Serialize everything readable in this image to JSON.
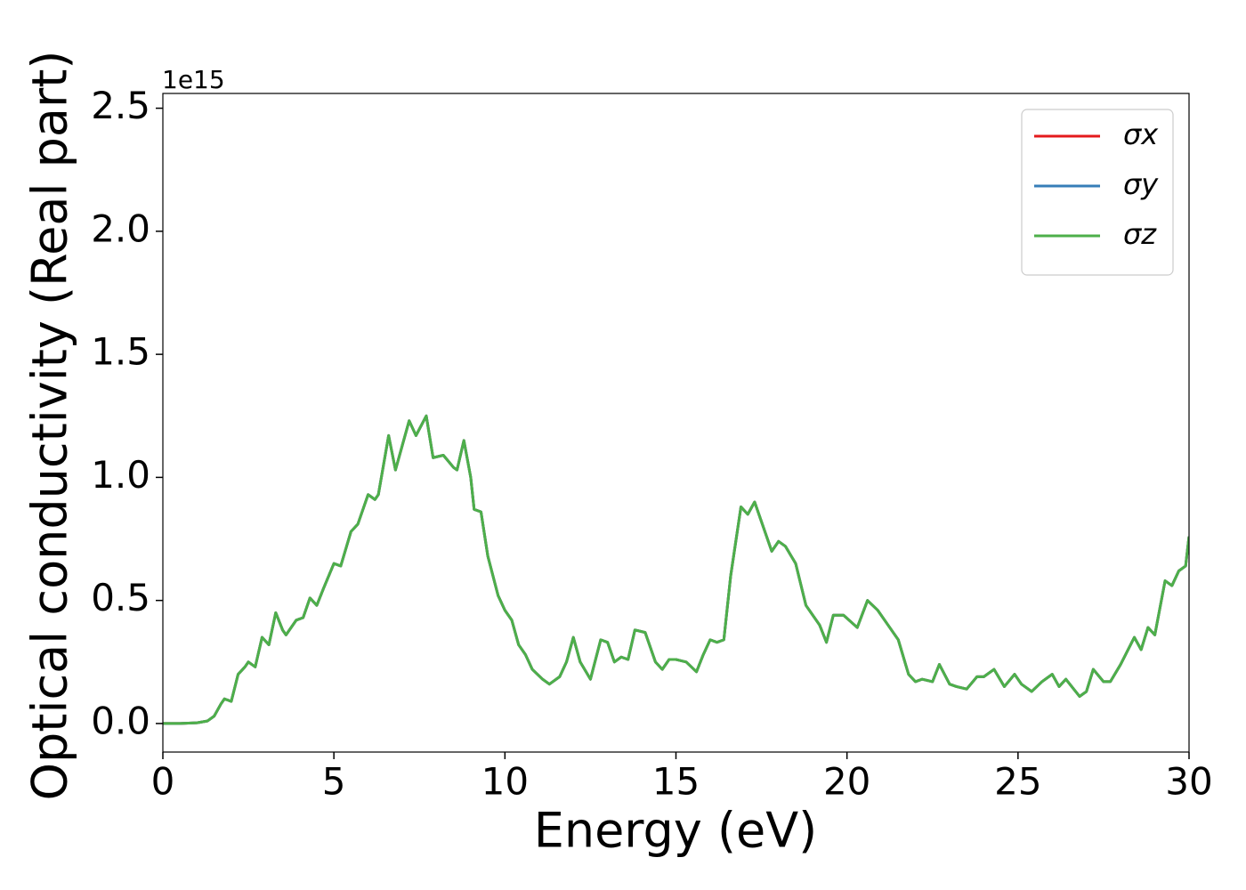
{
  "chart_data": {
    "type": "line",
    "xlabel": "Energy (eV)",
    "ylabel": "Optical conductivity (Real part)",
    "y_offset_text": "1e15",
    "x": [
      0,
      0.5,
      1,
      1.3,
      1.5,
      1.7,
      1.8,
      2.0,
      2.2,
      2.4,
      2.5,
      2.7,
      2.9,
      3.1,
      3.3,
      3.5,
      3.6,
      3.9,
      4.1,
      4.3,
      4.5,
      4.7,
      5.0,
      5.2,
      5.5,
      5.7,
      6.0,
      6.2,
      6.3,
      6.6,
      6.8,
      7.0,
      7.2,
      7.4,
      7.7,
      7.9,
      8.2,
      8.5,
      8.6,
      8.8,
      9.0,
      9.1,
      9.3,
      9.5,
      9.8,
      10.0,
      10.2,
      10.4,
      10.6,
      10.8,
      11.1,
      11.3,
      11.6,
      11.8,
      12.0,
      12.2,
      12.5,
      12.8,
      13.0,
      13.2,
      13.4,
      13.6,
      13.8,
      14.1,
      14.4,
      14.6,
      14.8,
      15.0,
      15.3,
      15.6,
      15.8,
      16.0,
      16.2,
      16.4,
      16.6,
      16.9,
      17.1,
      17.3,
      17.6,
      17.8,
      18.0,
      18.2,
      18.5,
      18.8,
      19.0,
      19.2,
      19.4,
      19.6,
      19.9,
      20.3,
      20.6,
      20.9,
      21.2,
      21.5,
      21.8,
      22.0,
      22.2,
      22.5,
      22.7,
      23.0,
      23.2,
      23.5,
      23.8,
      24.0,
      24.3,
      24.6,
      24.9,
      25.1,
      25.4,
      25.7,
      26.0,
      26.2,
      26.4,
      26.8,
      27.0,
      27.2,
      27.5,
      27.7,
      28.0,
      28.4,
      28.6,
      28.8,
      29.0,
      29.3,
      29.5,
      29.7,
      29.9,
      30
    ],
    "series": [
      {
        "name": "σx",
        "color": "#e41a1c",
        "values": [
          0,
          0,
          0.003,
          0.01,
          0.03,
          0.08,
          0.1,
          0.09,
          0.2,
          0.23,
          0.25,
          0.23,
          0.35,
          0.32,
          0.45,
          0.38,
          0.36,
          0.42,
          0.43,
          0.51,
          0.48,
          0.55,
          0.65,
          0.64,
          0.78,
          0.81,
          0.93,
          0.91,
          0.93,
          1.17,
          1.03,
          1.13,
          1.23,
          1.17,
          1.25,
          1.08,
          1.09,
          1.04,
          1.03,
          1.15,
          1.0,
          0.87,
          0.86,
          0.68,
          0.52,
          0.46,
          0.42,
          0.32,
          0.28,
          0.22,
          0.18,
          0.16,
          0.19,
          0.25,
          0.35,
          0.25,
          0.18,
          0.34,
          0.33,
          0.25,
          0.27,
          0.26,
          0.38,
          0.37,
          0.25,
          0.22,
          0.26,
          0.26,
          0.25,
          0.21,
          0.28,
          0.34,
          0.33,
          0.34,
          0.6,
          0.88,
          0.85,
          0.9,
          0.78,
          0.7,
          0.74,
          0.72,
          0.65,
          0.48,
          0.44,
          0.4,
          0.33,
          0.44,
          0.44,
          0.39,
          0.5,
          0.46,
          0.4,
          0.34,
          0.2,
          0.17,
          0.18,
          0.17,
          0.24,
          0.16,
          0.15,
          0.14,
          0.19,
          0.19,
          0.22,
          0.15,
          0.2,
          0.16,
          0.13,
          0.17,
          0.2,
          0.15,
          0.18,
          0.11,
          0.13,
          0.22,
          0.17,
          0.17,
          0.24,
          0.35,
          0.3,
          0.39,
          0.36,
          0.58,
          0.56,
          0.62,
          0.64,
          0.76
        ]
      },
      {
        "name": "σy",
        "color": "#377eb8",
        "values": [
          0,
          0,
          0.003,
          0.01,
          0.03,
          0.08,
          0.1,
          0.09,
          0.2,
          0.23,
          0.25,
          0.23,
          0.35,
          0.32,
          0.45,
          0.38,
          0.36,
          0.42,
          0.43,
          0.51,
          0.48,
          0.55,
          0.65,
          0.64,
          0.78,
          0.81,
          0.93,
          0.91,
          0.93,
          1.17,
          1.03,
          1.13,
          1.23,
          1.17,
          1.25,
          1.08,
          1.09,
          1.04,
          1.03,
          1.15,
          1.0,
          0.87,
          0.86,
          0.68,
          0.52,
          0.46,
          0.42,
          0.32,
          0.28,
          0.22,
          0.18,
          0.16,
          0.19,
          0.25,
          0.35,
          0.25,
          0.18,
          0.34,
          0.33,
          0.25,
          0.27,
          0.26,
          0.38,
          0.37,
          0.25,
          0.22,
          0.26,
          0.26,
          0.25,
          0.21,
          0.28,
          0.34,
          0.33,
          0.34,
          0.6,
          0.88,
          0.85,
          0.9,
          0.78,
          0.7,
          0.74,
          0.72,
          0.65,
          0.48,
          0.44,
          0.4,
          0.33,
          0.44,
          0.44,
          0.39,
          0.5,
          0.46,
          0.4,
          0.34,
          0.2,
          0.17,
          0.18,
          0.17,
          0.24,
          0.16,
          0.15,
          0.14,
          0.19,
          0.19,
          0.22,
          0.15,
          0.2,
          0.16,
          0.13,
          0.17,
          0.2,
          0.15,
          0.18,
          0.11,
          0.13,
          0.22,
          0.17,
          0.17,
          0.24,
          0.35,
          0.3,
          0.39,
          0.36,
          0.58,
          0.56,
          0.62,
          0.64,
          0.76
        ]
      },
      {
        "name": "σz",
        "color": "#4daf4a",
        "values": [
          0,
          0,
          0.003,
          0.01,
          0.03,
          0.08,
          0.1,
          0.09,
          0.2,
          0.23,
          0.25,
          0.23,
          0.35,
          0.32,
          0.45,
          0.38,
          0.36,
          0.42,
          0.43,
          0.51,
          0.48,
          0.55,
          0.65,
          0.64,
          0.78,
          0.81,
          0.93,
          0.91,
          0.93,
          1.17,
          1.03,
          1.13,
          1.23,
          1.17,
          1.25,
          1.08,
          1.09,
          1.04,
          1.03,
          1.15,
          1.0,
          0.87,
          0.86,
          0.68,
          0.52,
          0.46,
          0.42,
          0.32,
          0.28,
          0.22,
          0.18,
          0.16,
          0.19,
          0.25,
          0.35,
          0.25,
          0.18,
          0.34,
          0.33,
          0.25,
          0.27,
          0.26,
          0.38,
          0.37,
          0.25,
          0.22,
          0.26,
          0.26,
          0.25,
          0.21,
          0.28,
          0.34,
          0.33,
          0.34,
          0.6,
          0.88,
          0.85,
          0.9,
          0.78,
          0.7,
          0.74,
          0.72,
          0.65,
          0.48,
          0.44,
          0.4,
          0.33,
          0.44,
          0.44,
          0.39,
          0.5,
          0.46,
          0.4,
          0.34,
          0.2,
          0.17,
          0.18,
          0.17,
          0.24,
          0.16,
          0.15,
          0.14,
          0.19,
          0.19,
          0.22,
          0.15,
          0.2,
          0.16,
          0.13,
          0.17,
          0.2,
          0.15,
          0.18,
          0.11,
          0.13,
          0.22,
          0.17,
          0.17,
          0.24,
          0.35,
          0.3,
          0.39,
          0.36,
          0.58,
          0.56,
          0.62,
          0.64,
          0.76
        ]
      }
    ],
    "xlim": [
      0,
      30
    ],
    "xticks": [
      0,
      5,
      10,
      15,
      20,
      25,
      30
    ],
    "ylim": [
      -0.116,
      2.56
    ],
    "yticks": [
      {
        "value": 0,
        "label": "0.0"
      },
      0.5,
      {
        "value": 1,
        "label": "1.0"
      },
      1.5,
      {
        "value": 2,
        "label": "2.0"
      },
      2.5
    ],
    "legend": "upper right",
    "grid": false
  }
}
